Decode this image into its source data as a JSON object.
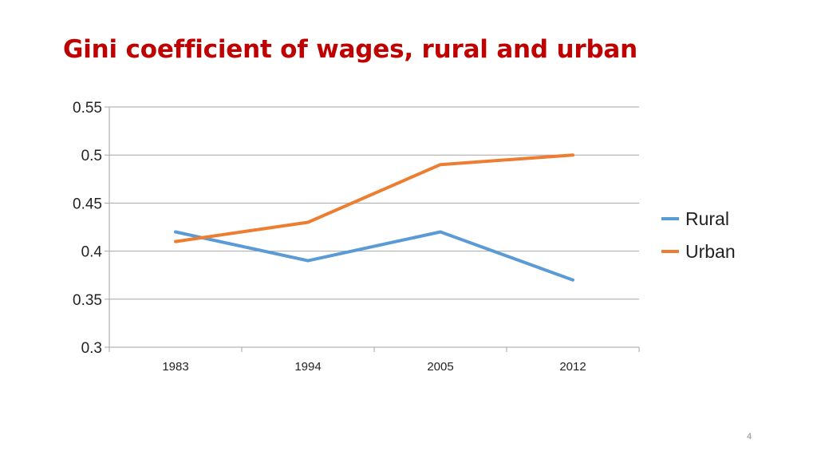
{
  "slide": {
    "page_number": "4"
  },
  "chart_data": {
    "type": "line",
    "title": "Gini coefficient of wages, rural and urban",
    "xlabel": "",
    "ylabel": "",
    "categories": [
      "1983",
      "1994",
      "2005",
      "2012"
    ],
    "y_ticks": [
      "0.3",
      "0.35",
      "0.4",
      "0.45",
      "0.5",
      "0.55"
    ],
    "ylim": [
      0.3,
      0.55
    ],
    "grid": true,
    "legend": "right",
    "series": [
      {
        "name": "Rural",
        "color": "#5b9bd5",
        "values": [
          0.42,
          0.39,
          0.42,
          0.37
        ]
      },
      {
        "name": "Urban",
        "color": "#ed7d31",
        "values": [
          0.41,
          0.43,
          0.49,
          0.5
        ]
      }
    ]
  }
}
